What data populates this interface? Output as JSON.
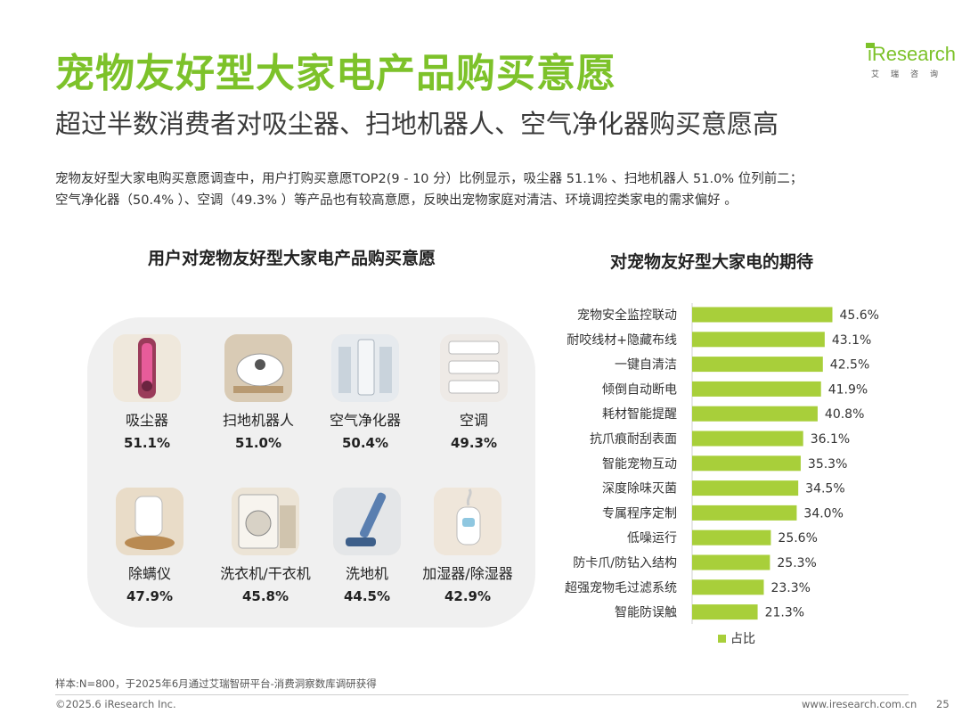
{
  "header": {
    "title": "宠物友好型大家电产品购买意愿",
    "subtitle": "超过半数消费者对吸尘器、扫地机器人、空气净化器购买意愿高",
    "logo_text": "iResearch",
    "logo_sub": "艾瑞咨询"
  },
  "description": {
    "line1": "宠物友好型大家电购买意愿调查中，用户打购买意愿TOP2(9 - 10 分）比例显示，吸尘器 51.1% 、扫地机器人 51.0% 位列前二；",
    "line2": "空气净化器（50.4% ）、空调（49.3% ）等产品也有较高意愿，反映出宠物家庭对清洁、环境调控类家电的需求偏好 。"
  },
  "left_panel": {
    "title": "用户对宠物友好型大家电产品购买意愿",
    "products": [
      {
        "name": "吸尘器",
        "value": "51.1%",
        "icon": "vacuum-cleaner-icon"
      },
      {
        "name": "扫地机器人",
        "value": "51.0%",
        "icon": "robot-vacuum-icon"
      },
      {
        "name": "空气净化器",
        "value": "50.4%",
        "icon": "air-purifier-icon"
      },
      {
        "name": "空调",
        "value": "49.3%",
        "icon": "air-conditioner-icon"
      },
      {
        "name": "除螨仪",
        "value": "47.9%",
        "icon": "mite-remover-icon"
      },
      {
        "name": "洗衣机/干衣机",
        "value": "45.8%",
        "icon": "washing-machine-icon"
      },
      {
        "name": "洗地机",
        "value": "44.5%",
        "icon": "floor-scrubber-icon"
      },
      {
        "name": "加湿器/除湿器",
        "value": "42.9%",
        "icon": "humidifier-icon"
      }
    ]
  },
  "chart_data": {
    "type": "bar",
    "orientation": "horizontal",
    "title": "对宠物友好型大家电的期待",
    "categories": [
      "宠物安全监控联动",
      "耐咬线材+隐藏布线",
      "一键自清洁",
      "倾倒自动断电",
      "耗材智能提醒",
      "抗爪痕耐刮表面",
      "智能宠物互动",
      "深度除味灭菌",
      "专属程序定制",
      "低噪运行",
      "防卡爪/防钻入结构",
      "超强宠物毛过滤系统",
      "智能防误触"
    ],
    "series": [
      {
        "name": "占比",
        "values": [
          45.6,
          43.1,
          42.5,
          41.9,
          40.8,
          36.1,
          35.3,
          34.5,
          34.0,
          25.6,
          25.3,
          23.3,
          21.3
        ]
      }
    ],
    "value_labels": [
      "45.6%",
      "43.1%",
      "42.5%",
      "41.9%",
      "40.8%",
      "36.1%",
      "35.3%",
      "34.5%",
      "34.0%",
      "25.6%",
      "25.3%",
      "23.3%",
      "21.3%"
    ],
    "xlim": [
      0,
      60
    ],
    "bar_color": "#a8cf3a",
    "legend_position": "bottom",
    "grid": false
  },
  "footer": {
    "note": "样本:N=800，于2025年6月通过艾瑞智研平台-消费洞察数库调研获得",
    "copyright": "©2025.6 iResearch Inc.",
    "website": "www.iresearch.com.cn",
    "page": "25"
  },
  "colors": {
    "brand_green": "#7dc22a",
    "bar": "#a8cf3a",
    "panel_bg": "#f0f0f0"
  }
}
